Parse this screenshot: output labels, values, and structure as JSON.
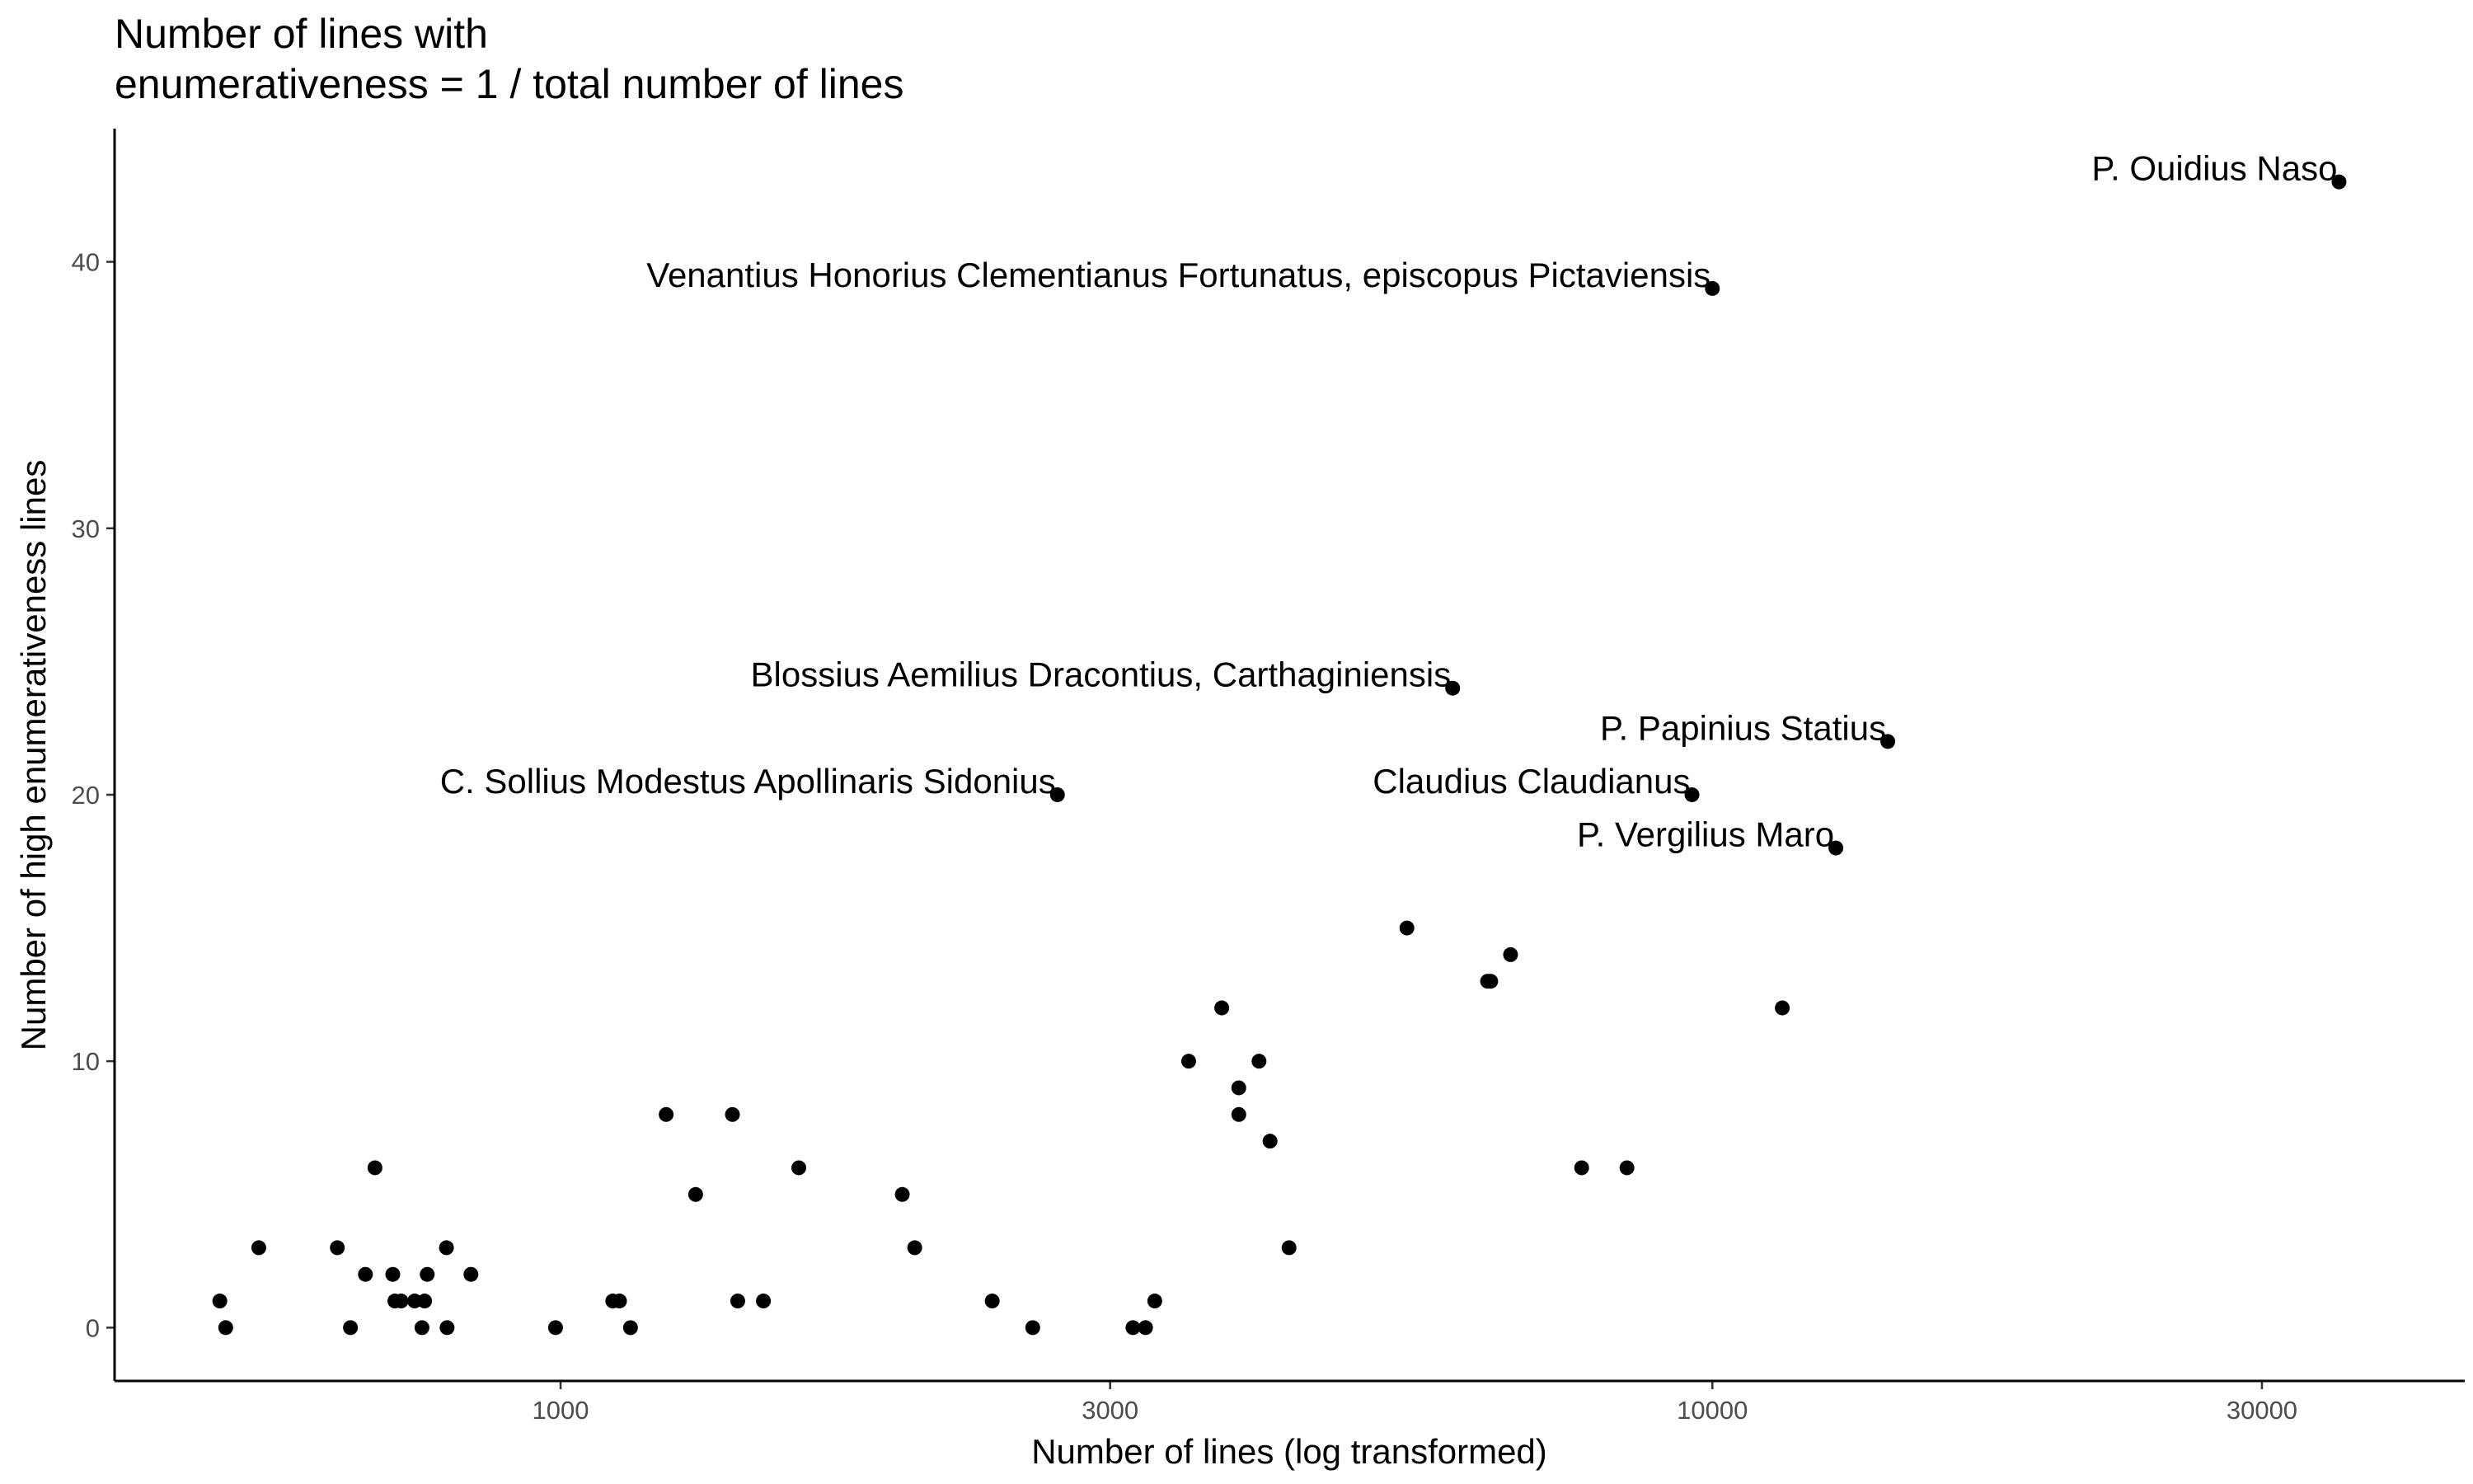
{
  "chart_data": {
    "type": "scatter",
    "title_lines": [
      "Number of lines with",
      "enumerativeness = 1 / total number of lines"
    ],
    "xlabel": "Number of lines (log transformed)",
    "ylabel": "Number of high enumerativeness lines",
    "x_scale": "log10",
    "xlim": [
      410,
      45000
    ],
    "ylim": [
      -2,
      45
    ],
    "x_ticks": [
      1000,
      3000,
      10000,
      30000
    ],
    "x_tick_labels": [
      "1000",
      "3000",
      "10000",
      "30000"
    ],
    "y_ticks": [
      0,
      10,
      20,
      30,
      40
    ],
    "y_tick_labels": [
      "0",
      "10",
      "20",
      "30",
      "40"
    ],
    "grid": false,
    "point_color": "#000000",
    "points": [
      {
        "x": 35000,
        "y": 43,
        "label": "P. Ouidius Naso"
      },
      {
        "x": 10000,
        "y": 39,
        "label": "Venantius Honorius Clementianus Fortunatus, episcopus Pictaviensis"
      },
      {
        "x": 5950,
        "y": 24,
        "label": "Blossius Aemilius Dracontius, Carthaginiensis"
      },
      {
        "x": 14200,
        "y": 22,
        "label": "P. Papinius Statius"
      },
      {
        "x": 2700,
        "y": 20,
        "label": "C. Sollius Modestus Apollinaris Sidonius"
      },
      {
        "x": 9600,
        "y": 20,
        "label": "Claudius Claudianus"
      },
      {
        "x": 12800,
        "y": 18,
        "label": "P. Vergilius Maro"
      },
      {
        "x": 506,
        "y": 1
      },
      {
        "x": 512,
        "y": 0
      },
      {
        "x": 547,
        "y": 3
      },
      {
        "x": 640,
        "y": 3
      },
      {
        "x": 657,
        "y": 0
      },
      {
        "x": 677,
        "y": 2
      },
      {
        "x": 690,
        "y": 6
      },
      {
        "x": 715,
        "y": 2
      },
      {
        "x": 718,
        "y": 1
      },
      {
        "x": 727,
        "y": 1
      },
      {
        "x": 747,
        "y": 1
      },
      {
        "x": 762,
        "y": 1
      },
      {
        "x": 758,
        "y": 0
      },
      {
        "x": 766,
        "y": 2
      },
      {
        "x": 796,
        "y": 3
      },
      {
        "x": 797,
        "y": 0
      },
      {
        "x": 836,
        "y": 2
      },
      {
        "x": 990,
        "y": 0
      },
      {
        "x": 1110,
        "y": 1
      },
      {
        "x": 1125,
        "y": 1
      },
      {
        "x": 1150,
        "y": 0
      },
      {
        "x": 1235,
        "y": 8
      },
      {
        "x": 1310,
        "y": 5
      },
      {
        "x": 1410,
        "y": 8
      },
      {
        "x": 1425,
        "y": 1
      },
      {
        "x": 1500,
        "y": 1
      },
      {
        "x": 1610,
        "y": 6
      },
      {
        "x": 1980,
        "y": 5
      },
      {
        "x": 2030,
        "y": 3
      },
      {
        "x": 2370,
        "y": 1
      },
      {
        "x": 2570,
        "y": 0
      },
      {
        "x": 3140,
        "y": 0
      },
      {
        "x": 3220,
        "y": 0
      },
      {
        "x": 3280,
        "y": 1
      },
      {
        "x": 3510,
        "y": 10
      },
      {
        "x": 3750,
        "y": 12
      },
      {
        "x": 3880,
        "y": 9
      },
      {
        "x": 3880,
        "y": 8
      },
      {
        "x": 4040,
        "y": 10
      },
      {
        "x": 4130,
        "y": 7
      },
      {
        "x": 4290,
        "y": 3
      },
      {
        "x": 5430,
        "y": 15
      },
      {
        "x": 6380,
        "y": 13
      },
      {
        "x": 6420,
        "y": 13
      },
      {
        "x": 6680,
        "y": 14
      },
      {
        "x": 7700,
        "y": 6
      },
      {
        "x": 8430,
        "y": 6
      },
      {
        "x": 11500,
        "y": 12
      }
    ]
  }
}
